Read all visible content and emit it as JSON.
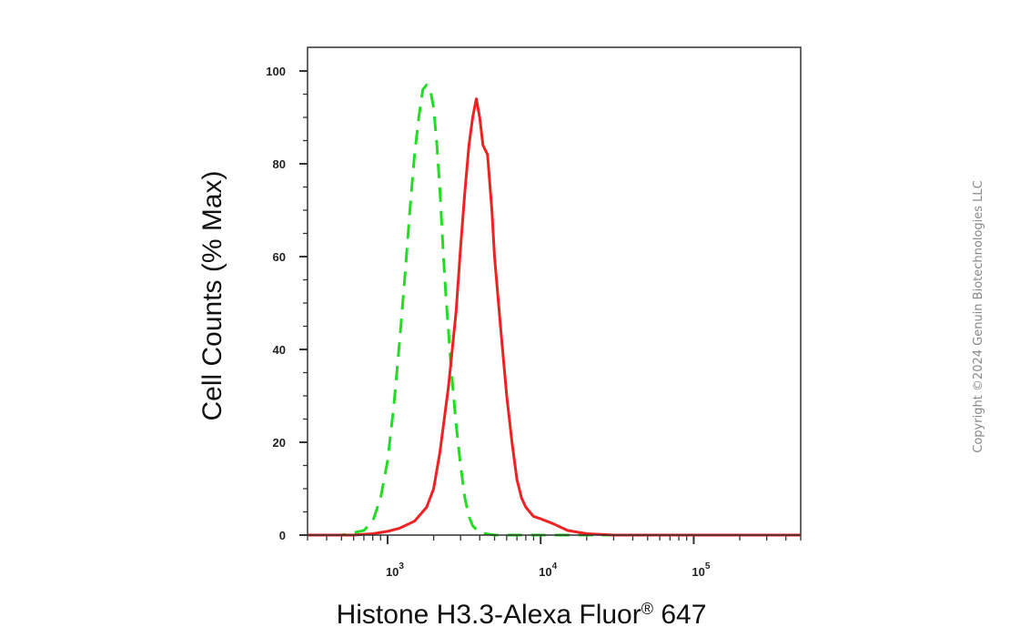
{
  "chart_data": {
    "type": "line",
    "title": "",
    "xlabel": "Histone H3.3-Alexa Fluor® 647",
    "xlabel_main": "Histone H3.3-Alexa Fluor",
    "xlabel_reg": "®",
    "xlabel_suffix": " 647",
    "ylabel": "Cell Counts (% Max)",
    "x_scale": "log",
    "xlim": [
      300,
      500000
    ],
    "ylim": [
      0,
      100
    ],
    "y_ticks": [
      0,
      20,
      40,
      60,
      80,
      100
    ],
    "y_tick_labels": [
      "0",
      "20",
      "40",
      "60",
      "80",
      "100"
    ],
    "x_decades": [
      1000,
      10000,
      100000
    ],
    "x_tick_labels": [
      {
        "base": "10",
        "exp": "3"
      },
      {
        "base": "10",
        "exp": "4"
      },
      {
        "base": "10",
        "exp": "5"
      }
    ],
    "grid": false,
    "series": [
      {
        "style": "dashed",
        "color": "#22dd22",
        "x": [
          300,
          500,
          600,
          700,
          800,
          900,
          1000,
          1100,
          1200,
          1300,
          1400,
          1500,
          1600,
          1700,
          1800,
          1900,
          2000,
          2100,
          2200,
          2300,
          2400,
          2500,
          2600,
          2700,
          2800,
          3000,
          3200,
          3400,
          3600,
          4000,
          5000,
          8000,
          20000,
          100000,
          500000
        ],
        "y": [
          0,
          0,
          0.5,
          1,
          3,
          8,
          16,
          28,
          42,
          56,
          70,
          82,
          90,
          96,
          97,
          96,
          92,
          84,
          74,
          62,
          52,
          44,
          36,
          30,
          24,
          15,
          8,
          4,
          2,
          0.5,
          0,
          0,
          0,
          0,
          0
        ]
      },
      {
        "style": "solid",
        "color": "#ee2222",
        "x": [
          300,
          600,
          800,
          1000,
          1200,
          1500,
          1800,
          2000,
          2200,
          2500,
          2800,
          3000,
          3200,
          3400,
          3600,
          3800,
          4000,
          4200,
          4500,
          4800,
          5000,
          5500,
          6000,
          6500,
          7000,
          7500,
          8000,
          9000,
          10000,
          12000,
          15000,
          20000,
          30000,
          100000,
          500000
        ],
        "y": [
          0,
          0,
          0.3,
          0.8,
          1.5,
          3,
          6,
          10,
          18,
          32,
          48,
          62,
          74,
          84,
          90,
          94,
          90,
          84,
          82,
          70,
          60,
          44,
          30,
          20,
          12,
          8,
          6,
          4,
          3.5,
          2.5,
          1,
          0.3,
          0,
          0,
          0
        ]
      }
    ]
  },
  "watermark": "Copyright ©2024 Genuin Biotechnologies LLC"
}
